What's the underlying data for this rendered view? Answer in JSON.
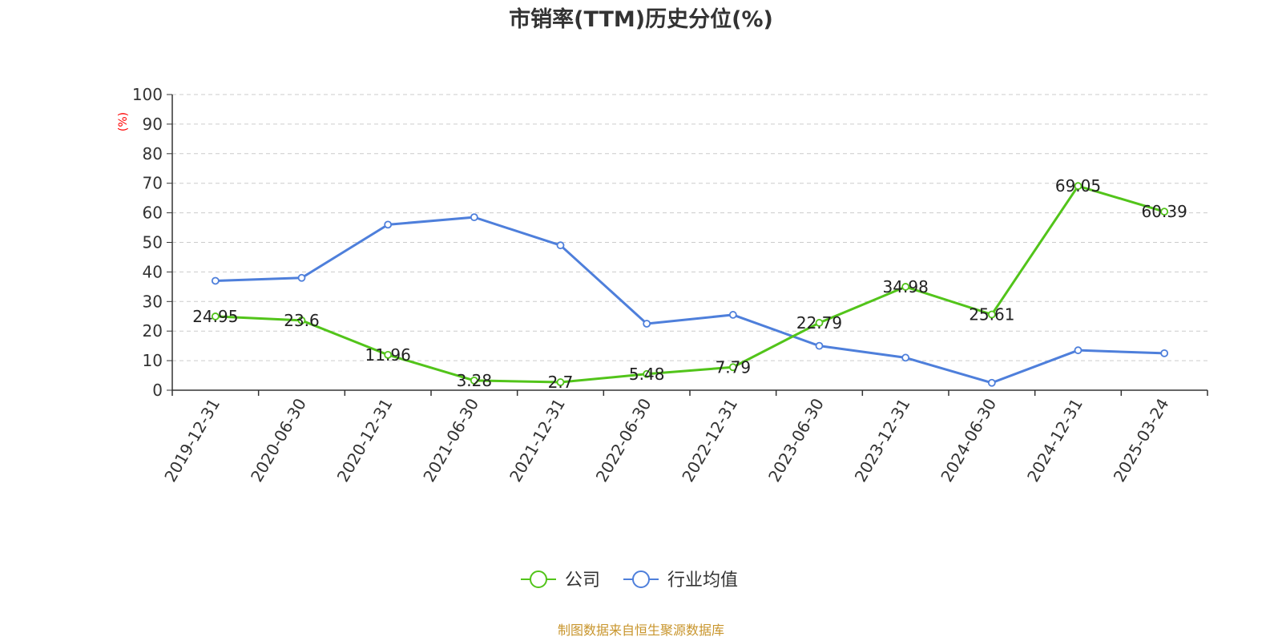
{
  "chart_data": {
    "type": "line",
    "title": "市销率(TTM)历史分位(%)",
    "ylabel": "(%)",
    "ylim": [
      0,
      100
    ],
    "yticks": [
      0,
      10,
      20,
      30,
      40,
      50,
      60,
      70,
      80,
      90,
      100
    ],
    "categories": [
      "2019-12-31",
      "2020-06-30",
      "2020-12-31",
      "2021-06-30",
      "2021-12-31",
      "2022-06-30",
      "2022-12-31",
      "2023-06-30",
      "2023-12-31",
      "2024-06-30",
      "2024-12-31",
      "2025-03-24"
    ],
    "grid": "horizontal-dashed",
    "legend_position": "bottom-center",
    "series": [
      {
        "name": "公司",
        "color": "#52c41a",
        "values": [
          24.95,
          23.6,
          11.96,
          3.28,
          2.7,
          5.48,
          7.79,
          22.79,
          34.98,
          25.61,
          69.05,
          60.39
        ],
        "labels": [
          "24.95",
          "23.6",
          "11.96",
          "3.28",
          "2.7",
          "5.48",
          "7.79",
          "22.79",
          "34.98",
          "25.61",
          "69.05",
          "60.39"
        ]
      },
      {
        "name": "行业均值",
        "color": "#4e7fdb",
        "values": [
          37,
          38,
          56,
          58.5,
          49,
          22.5,
          25.5,
          15,
          11,
          2.5,
          13.5,
          12.5
        ]
      }
    ],
    "source": "制图数据来自恒生聚源数据库",
    "source_color": "#c8952c",
    "unit_color": "#ff0000"
  }
}
